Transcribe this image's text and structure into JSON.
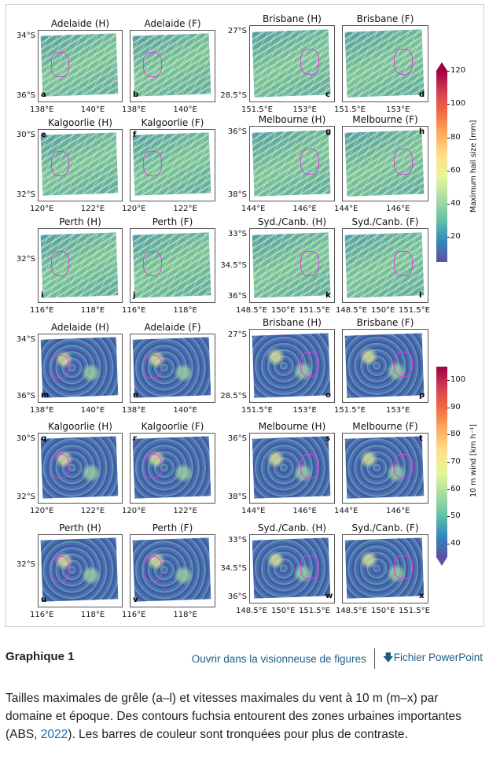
{
  "figure": {
    "panels": [
      {
        "title": "Adelaide (H)",
        "letter": "a",
        "var": "hail",
        "lat": [
          "34°S",
          "36°S"
        ],
        "lon": [
          "138°E",
          "140°E"
        ]
      },
      {
        "title": "Adelaide (F)",
        "letter": "b",
        "var": "hail",
        "lat": [],
        "lon": [
          "138°E",
          "140°E"
        ]
      },
      {
        "title": "Brisbane (H)",
        "letter": "c",
        "var": "hail",
        "lat": [
          "27°S",
          "28.5°S"
        ],
        "lon": [
          "151.5°E",
          "153°E"
        ]
      },
      {
        "title": "Brisbane (F)",
        "letter": "d",
        "var": "hail",
        "lat": [],
        "lon": [
          "151.5°E",
          "153°E"
        ]
      },
      {
        "title": "Kalgoorlie (H)",
        "letter": "e",
        "var": "hail",
        "lat": [
          "30°S",
          "32°S"
        ],
        "lon": [
          "120°E",
          "122°E"
        ]
      },
      {
        "title": "Kalgoorlie (F)",
        "letter": "f",
        "var": "hail",
        "lat": [],
        "lon": [
          "120°E",
          "122°E"
        ]
      },
      {
        "title": "Melbourne (H)",
        "letter": "g",
        "var": "hail",
        "lat": [
          "36°S",
          "38°S"
        ],
        "lon": [
          "144°E",
          "146°E"
        ]
      },
      {
        "title": "Melbourne (F)",
        "letter": "h",
        "var": "hail",
        "lat": [],
        "lon": [
          "144°E",
          "146°E"
        ]
      },
      {
        "title": "Perth (H)",
        "letter": "i",
        "var": "hail",
        "lat": [
          "32°S"
        ],
        "lon": [
          "116°E",
          "118°E"
        ]
      },
      {
        "title": "Perth (F)",
        "letter": "j",
        "var": "hail",
        "lat": [],
        "lon": [
          "116°E",
          "118°E"
        ]
      },
      {
        "title": "Syd./Canb. (H)",
        "letter": "k",
        "var": "hail",
        "lat": [
          "33°S",
          "34.5°S",
          "36°S"
        ],
        "lon": [
          "148.5°E",
          "150°E",
          "151.5°E"
        ]
      },
      {
        "title": "Syd./Canb. (F)",
        "letter": "l",
        "var": "hail",
        "lat": [],
        "lon": [
          "148.5°E",
          "150°E",
          "151.5°E"
        ]
      },
      {
        "title": "Adelaide (H)",
        "letter": "m",
        "var": "wind",
        "lat": [
          "34°S",
          "36°S"
        ],
        "lon": [
          "138°E",
          "140°E"
        ]
      },
      {
        "title": "Adelaide (F)",
        "letter": "n",
        "var": "wind",
        "lat": [],
        "lon": [
          "138°E",
          "140°E"
        ]
      },
      {
        "title": "Brisbane (H)",
        "letter": "o",
        "var": "wind",
        "lat": [
          "27°S",
          "28.5°S"
        ],
        "lon": [
          "151.5°E",
          "153°E"
        ]
      },
      {
        "title": "Brisbane (F)",
        "letter": "p",
        "var": "wind",
        "lat": [],
        "lon": [
          "151.5°E",
          "153°E"
        ]
      },
      {
        "title": "Kalgoorlie (H)",
        "letter": "q",
        "var": "wind",
        "lat": [
          "30°S",
          "32°S"
        ],
        "lon": [
          "120°E",
          "122°E"
        ]
      },
      {
        "title": "Kalgoorlie (F)",
        "letter": "r",
        "var": "wind",
        "lat": [],
        "lon": [
          "120°E",
          "122°E"
        ]
      },
      {
        "title": "Melbourne (H)",
        "letter": "s",
        "var": "wind",
        "lat": [
          "36°S",
          "38°S"
        ],
        "lon": [
          "144°E",
          "146°E"
        ]
      },
      {
        "title": "Melbourne (F)",
        "letter": "t",
        "var": "wind",
        "lat": [],
        "lon": [
          "144°E",
          "146°E"
        ]
      },
      {
        "title": "Perth (H)",
        "letter": "u",
        "var": "wind",
        "lat": [
          "32°S"
        ],
        "lon": [
          "116°E",
          "118°E"
        ]
      },
      {
        "title": "Perth (F)",
        "letter": "v",
        "var": "wind",
        "lat": [],
        "lon": [
          "116°E",
          "118°E"
        ]
      },
      {
        "title": "Syd./Canb. (H)",
        "letter": "w",
        "var": "wind",
        "lat": [
          "33°S",
          "34.5°S",
          "36°S"
        ],
        "lon": [
          "148.5°E",
          "150°E",
          "151.5°E"
        ]
      },
      {
        "title": "Syd./Canb. (F)",
        "letter": "x",
        "var": "wind",
        "lat": [],
        "lon": [
          "148.5°E",
          "150°E",
          "151.5°E"
        ]
      }
    ],
    "colorbars": [
      {
        "label": "Maximum hail size [mm]",
        "ticks": [
          "20",
          "40",
          "60",
          "80",
          "100",
          "120"
        ],
        "range": [
          5,
          120
        ],
        "extend": "max",
        "colormap": "Spectral_r"
      },
      {
        "label": "10 m wind [km h⁻¹]",
        "ticks": [
          "40",
          "50",
          "60",
          "70",
          "80",
          "90",
          "100"
        ],
        "range": [
          35,
          105
        ],
        "extend": "min",
        "colormap": "Spectral_r"
      }
    ],
    "urban_contour_color": "#e040e0"
  },
  "caption": {
    "heading": "Graphique 1",
    "open_viewer_link": "Ouvrir dans la visionneuse de figures",
    "powerpoint_link": "Fichier PowerPoint",
    "text_before": "Tailles maximales de grêle (a–l) et vitesses maximales du vent à 10 m (m–x) par domaine et époque. Des contours fuchsia entourent des zones urbaines importantes (ABS, ",
    "citation_link": "2022",
    "text_after": "). Les barres de couleur sont tronquées pour plus de contraste."
  },
  "colors": {
    "link": "#1b5f86",
    "citation": "#1b6fb5"
  }
}
